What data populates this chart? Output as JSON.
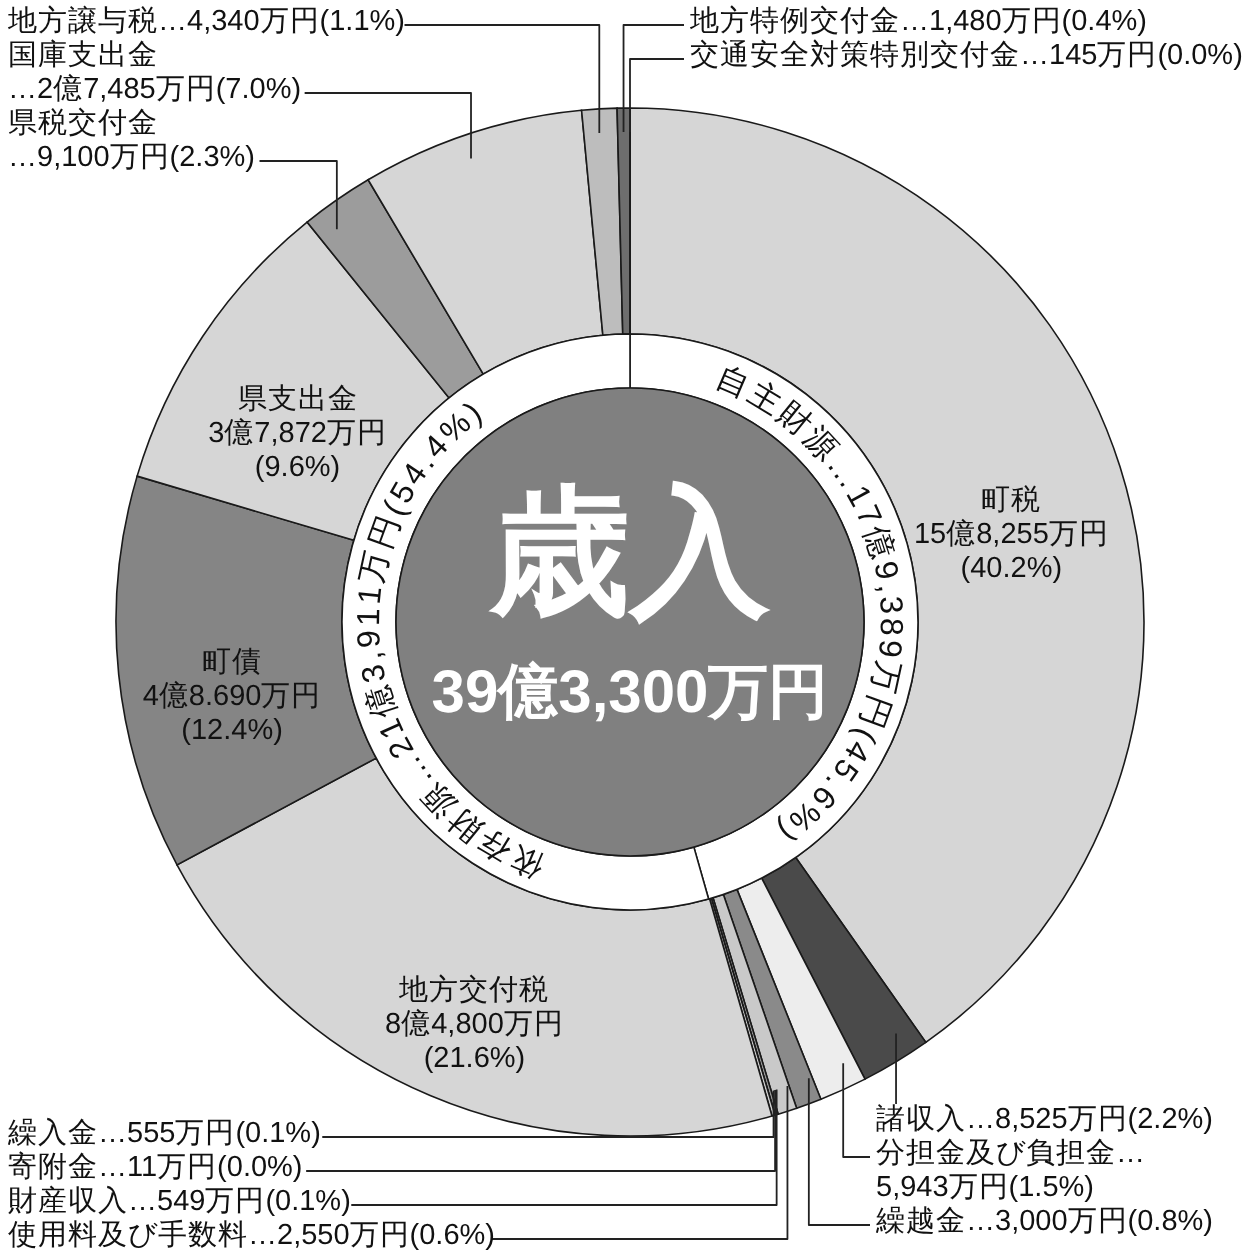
{
  "chart_data": {
    "type": "donut",
    "title": "歳入",
    "subtitle": "39億3,300万円",
    "categories": [
      "町税",
      "諸収入",
      "分担金及び負担金",
      "繰越金",
      "使用料及び手数料",
      "財産収入",
      "寄附金",
      "繰入金",
      "地方交付税",
      "町債",
      "県支出金",
      "県税交付金",
      "国庫支出金",
      "地方譲与税",
      "地方特例交付金",
      "交通安全対策特別交付金"
    ],
    "series": [
      {
        "values": [
          40.2,
          2.2,
          1.5,
          0.8,
          0.6,
          0.1,
          0.0,
          0.1,
          21.6,
          12.4,
          9.6,
          2.3,
          7.0,
          1.1,
          0.4,
          0.0
        ],
        "colors": [
          "#d6d6d6",
          "#4a4a4a",
          "#ededed",
          "#8a8a8a",
          "#c9c9c9",
          "#9a9a9a",
          "#9a9a9a",
          "#cfcfcf",
          "#d6d6d6",
          "#858585",
          "#d6d6d6",
          "#9c9c9c",
          "#d6d6d6",
          "#bdbdbd",
          "#6e6e6e",
          "#4a4a4a"
        ],
        "value_labels": [
          "\n15億8,255万円\n(40.2%)",
          "…8,525万円(2.2%)",
          "…\n5,943万円(1.5%)",
          "…3,000万円(0.8%)",
          "…2,550万円(0.6%)",
          "…549万円(0.1%)",
          "…11万円(0.0%)",
          "…555万円(0.1%)",
          "\n8億4,800万円\n(21.6%)",
          "\n4億8.690万円\n(12.4%)",
          "\n3億7,872万円\n(9.6%)",
          "\n…9,100万円(2.3%)",
          "\n…2億7,485万円(7.0%)",
          "…4,340万円(1.1%)",
          "…1,480万円(0.4%)",
          "…145万円(0.0%)"
        ]
      },
      {
        "values": [
          45.6,
          null,
          null,
          null,
          null,
          null,
          null,
          null,
          54.4,
          null,
          null,
          null,
          null,
          null,
          null,
          null
        ],
        "colors": [
          "#ffffff",
          null,
          null,
          null,
          null,
          null,
          null,
          null,
          "#ffffff",
          null,
          null,
          null,
          null,
          null,
          null,
          null
        ],
        "value_labels": [
          "自主財源…17億9,389万円(45.6%)",
          null,
          null,
          null,
          null,
          null,
          null,
          null,
          "依存財源…21億3,911万円(54.4%)",
          null,
          null,
          null,
          null,
          null,
          null,
          null
        ]
      }
    ]
  }
}
